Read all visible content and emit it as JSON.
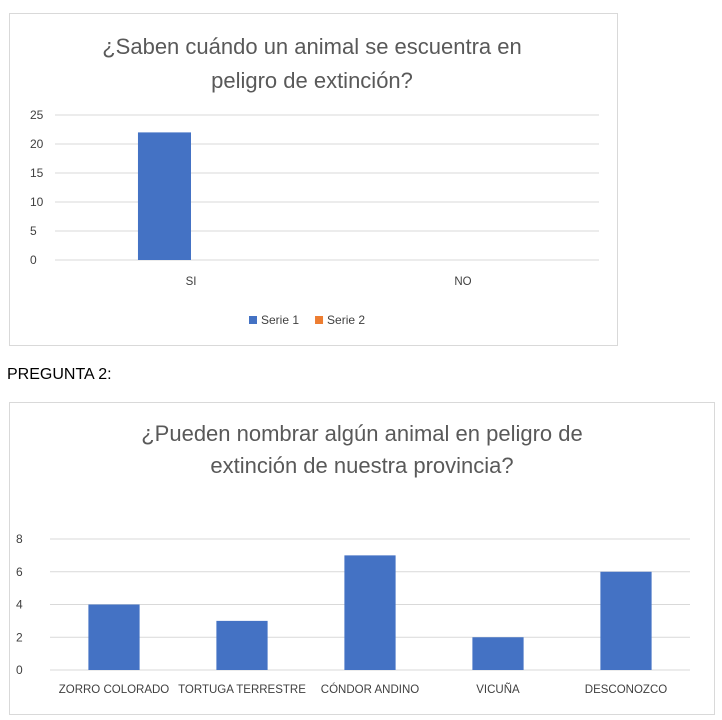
{
  "heading": "PREGUNTA 2:",
  "chart_data": [
    {
      "type": "bar",
      "title": "¿Saben cuándo un animal se escuentra en peligro de extinción?",
      "title_lines": [
        "¿Saben cuándo un animal se escuentra en",
        "peligro de extinción?"
      ],
      "categories": [
        "SI",
        "NO"
      ],
      "series": [
        {
          "name": "Serie 1",
          "values": [
            22,
            0
          ],
          "color": "#4472C4"
        },
        {
          "name": "Serie 2",
          "values": [
            0,
            0
          ],
          "color": "#ED7D31"
        }
      ],
      "ylim": [
        0,
        25
      ],
      "yticks": [
        0,
        5,
        10,
        15,
        20,
        25
      ],
      "grid": true,
      "legend": "bottom"
    },
    {
      "type": "bar",
      "title": "¿Pueden nombrar algún animal en peligro de extinción de nuestra provincia?",
      "title_lines": [
        "¿Pueden nombrar algún animal en peligro de",
        "extinción de nuestra provincia?"
      ],
      "categories": [
        "ZORRO COLORADO",
        "TORTUGA TERRESTRE",
        "CÓNDOR ANDINO",
        "VICUÑA",
        "DESCONOZCO"
      ],
      "series": [
        {
          "values": [
            4,
            3,
            7,
            2,
            6
          ],
          "color": "#4472C4"
        }
      ],
      "ylim": [
        0,
        8
      ],
      "yticks": [
        0,
        2,
        4,
        6,
        8
      ],
      "grid": true,
      "legend": "none"
    }
  ]
}
